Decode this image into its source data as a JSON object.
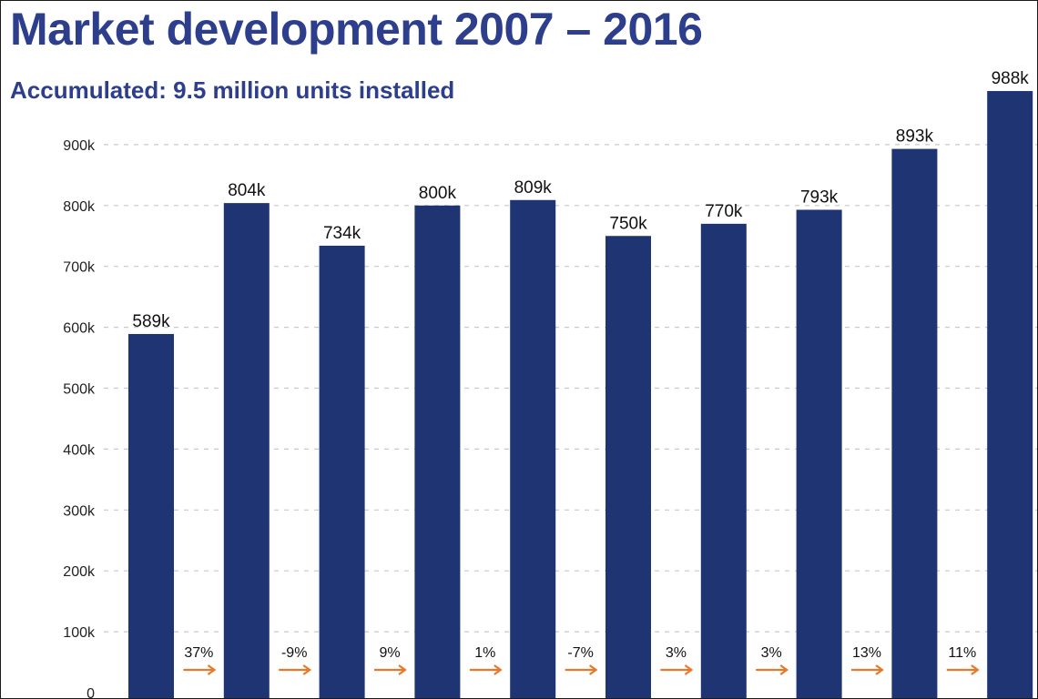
{
  "chart_data": {
    "type": "bar",
    "title": "Market development 2007 – 2016",
    "subtitle": "Accumulated: 9.5 million units installed",
    "xlabel": "",
    "ylabel": "",
    "ylim": [
      0,
      1000000
    ],
    "yticks": [
      {
        "value": 0,
        "label": "0"
      },
      {
        "value": 100000,
        "label": "100k"
      },
      {
        "value": 200000,
        "label": "200k"
      },
      {
        "value": 300000,
        "label": "300k"
      },
      {
        "value": 400000,
        "label": "400k"
      },
      {
        "value": 500000,
        "label": "500k"
      },
      {
        "value": 600000,
        "label": "600k"
      },
      {
        "value": 700000,
        "label": "700k"
      },
      {
        "value": 800000,
        "label": "800k"
      },
      {
        "value": 900000,
        "label": "900k"
      }
    ],
    "grid": true,
    "legend": "none",
    "bar_color": "#1f3473",
    "arrow_color": "#e8782a",
    "values": [
      589000,
      804000,
      734000,
      800000,
      809000,
      750000,
      770000,
      793000,
      893000,
      988000
    ],
    "data_labels": [
      "589k",
      "804k",
      "734k",
      "800k",
      "809k",
      "750k",
      "770k",
      "793k",
      "893k",
      "988k"
    ],
    "growth_labels": [
      "37%",
      "-9%",
      "9%",
      "1%",
      "-7%",
      "3%",
      "3%",
      "13%",
      "11%"
    ]
  }
}
